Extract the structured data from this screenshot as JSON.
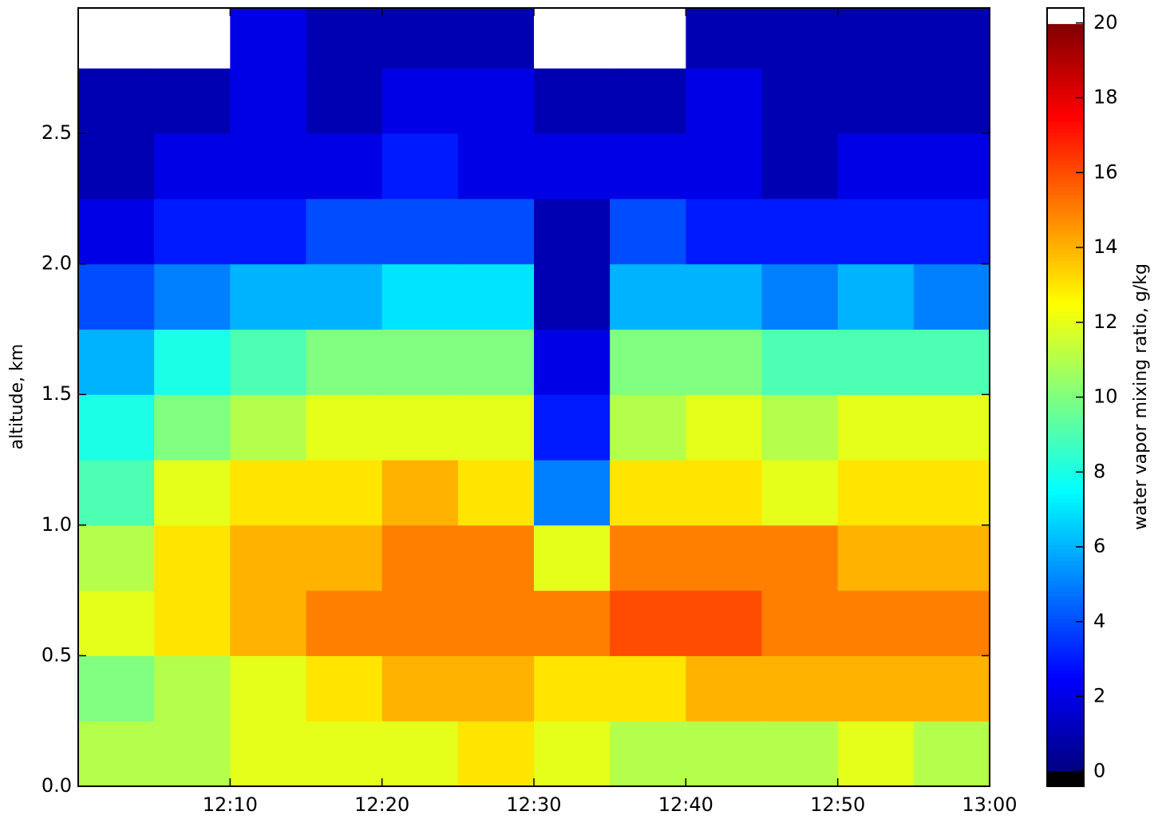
{
  "chart_data": {
    "type": "heatmap",
    "xlabel": null,
    "ylabel": "altitude, km",
    "colorbar_label": "water vapor mixing ratio, g/kg",
    "colormap": "jet",
    "under_color": "#000000",
    "over_color": "#ffffff",
    "x_bins": [
      "12:00",
      "12:05",
      "12:10",
      "12:15",
      "12:20",
      "12:25",
      "12:30",
      "12:35",
      "12:40",
      "12:45",
      "12:50",
      "12:55",
      "13:00"
    ],
    "y_bins": [
      0,
      0.25,
      0.5,
      0.75,
      1,
      1.25,
      1.5,
      1.75,
      2,
      2.25,
      2.5,
      2.75,
      3
    ],
    "values": [
      [
        11,
        11,
        12,
        12,
        12,
        13,
        12,
        11,
        11,
        11,
        12,
        11
      ],
      [
        10,
        11,
        12,
        13,
        14,
        14,
        13,
        13,
        14,
        14,
        14,
        14
      ],
      [
        12,
        13,
        14,
        15,
        15,
        15,
        15,
        16,
        16,
        15,
        15,
        15
      ],
      [
        11,
        13,
        14,
        14,
        15,
        15,
        12,
        15,
        15,
        15,
        14,
        14
      ],
      [
        9,
        12,
        13,
        13,
        14,
        13,
        5,
        13,
        13,
        12,
        13,
        13
      ],
      [
        8,
        10,
        11,
        12,
        12,
        12,
        3,
        11,
        12,
        11,
        12,
        12
      ],
      [
        6,
        8,
        9,
        10,
        10,
        10,
        2,
        10,
        10,
        9,
        9,
        9
      ],
      [
        4,
        5,
        6,
        6,
        7,
        7,
        1,
        6,
        6,
        5,
        6,
        5
      ],
      [
        2,
        3,
        3,
        4,
        4,
        4,
        1,
        4,
        3,
        3,
        3,
        3
      ],
      [
        1,
        2,
        2,
        2,
        3,
        2,
        2,
        2,
        2,
        1,
        2,
        2
      ],
      [
        1,
        1,
        2,
        1,
        2,
        2,
        1,
        1,
        2,
        1,
        1,
        1
      ],
      [
        21,
        21,
        2,
        1,
        1,
        1,
        21,
        21,
        1,
        1,
        1,
        1
      ]
    ],
    "xlim": [
      "12:00",
      "13:00"
    ],
    "xticks": [
      "12:10",
      "12:20",
      "12:30",
      "12:40",
      "12:50",
      "13:00"
    ],
    "ylim": [
      0,
      2.98
    ],
    "yticks": [
      {
        "value": 0,
        "label": "0.0"
      },
      0.5,
      {
        "value": 1,
        "label": "1.0"
      },
      1.5,
      {
        "value": 2,
        "label": "2.0"
      },
      2.5
    ],
    "clim": [
      -0.4,
      20.4
    ],
    "cticks": [
      0,
      2,
      4,
      6,
      8,
      10,
      12,
      14,
      16,
      18,
      20
    ],
    "cbar_range": [
      0,
      20
    ]
  }
}
